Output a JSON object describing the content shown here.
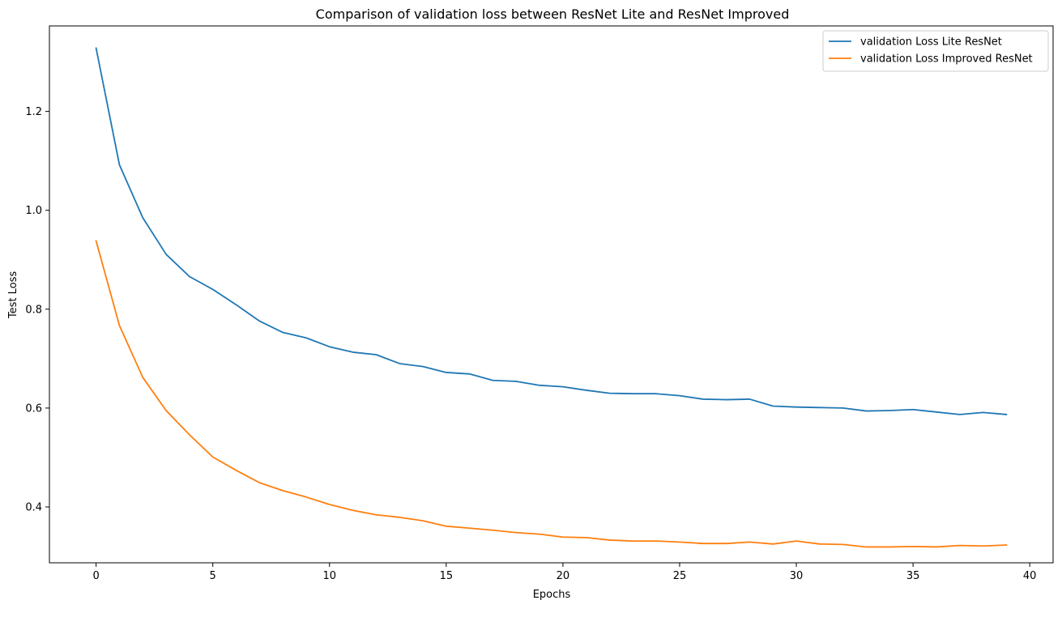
{
  "chart_data": {
    "type": "line",
    "title": "Comparison of validation loss between ResNet Lite and ResNet Improved",
    "xlabel": "Epochs",
    "ylabel": "Test Loss",
    "xlim": [
      -2,
      41
    ],
    "ylim": [
      0.287,
      1.373
    ],
    "xticks": [
      0,
      5,
      10,
      15,
      20,
      25,
      30,
      35,
      40
    ],
    "xtick_labels": [
      "0",
      "5",
      "10",
      "15",
      "20",
      "25",
      "30",
      "35",
      "40"
    ],
    "yticks": [
      0.4,
      0.6,
      0.8,
      1.0,
      1.2
    ],
    "ytick_labels": [
      "0.4",
      "0.6",
      "0.8",
      "1.0",
      "1.2"
    ],
    "grid": false,
    "legend_position": "top-right",
    "x": [
      0,
      1,
      2,
      3,
      4,
      5,
      6,
      7,
      8,
      9,
      10,
      11,
      12,
      13,
      14,
      15,
      16,
      17,
      18,
      19,
      20,
      21,
      22,
      23,
      24,
      25,
      26,
      27,
      28,
      29,
      30,
      31,
      32,
      33,
      34,
      35,
      36,
      37,
      38,
      39
    ],
    "series": [
      {
        "name": "validation Loss Lite ResNet",
        "color": "#1f77b4",
        "values": [
          1.328,
          1.092,
          0.985,
          0.911,
          0.866,
          0.84,
          0.809,
          0.776,
          0.753,
          0.742,
          0.724,
          0.713,
          0.708,
          0.69,
          0.684,
          0.672,
          0.669,
          0.656,
          0.654,
          0.646,
          0.643,
          0.636,
          0.63,
          0.629,
          0.629,
          0.625,
          0.618,
          0.617,
          0.618,
          0.604,
          0.602,
          0.601,
          0.6,
          0.594,
          0.595,
          0.597,
          0.592,
          0.587,
          0.591,
          0.587
        ]
      },
      {
        "name": "validation Loss Improved ResNet",
        "color": "#ff7f0e",
        "values": [
          0.938,
          0.767,
          0.662,
          0.595,
          0.546,
          0.501,
          0.474,
          0.449,
          0.433,
          0.42,
          0.405,
          0.393,
          0.384,
          0.379,
          0.372,
          0.361,
          0.357,
          0.353,
          0.348,
          0.345,
          0.339,
          0.338,
          0.333,
          0.331,
          0.331,
          0.329,
          0.326,
          0.326,
          0.329,
          0.325,
          0.331,
          0.325,
          0.324,
          0.319,
          0.319,
          0.32,
          0.319,
          0.322,
          0.321,
          0.323
        ]
      }
    ]
  }
}
